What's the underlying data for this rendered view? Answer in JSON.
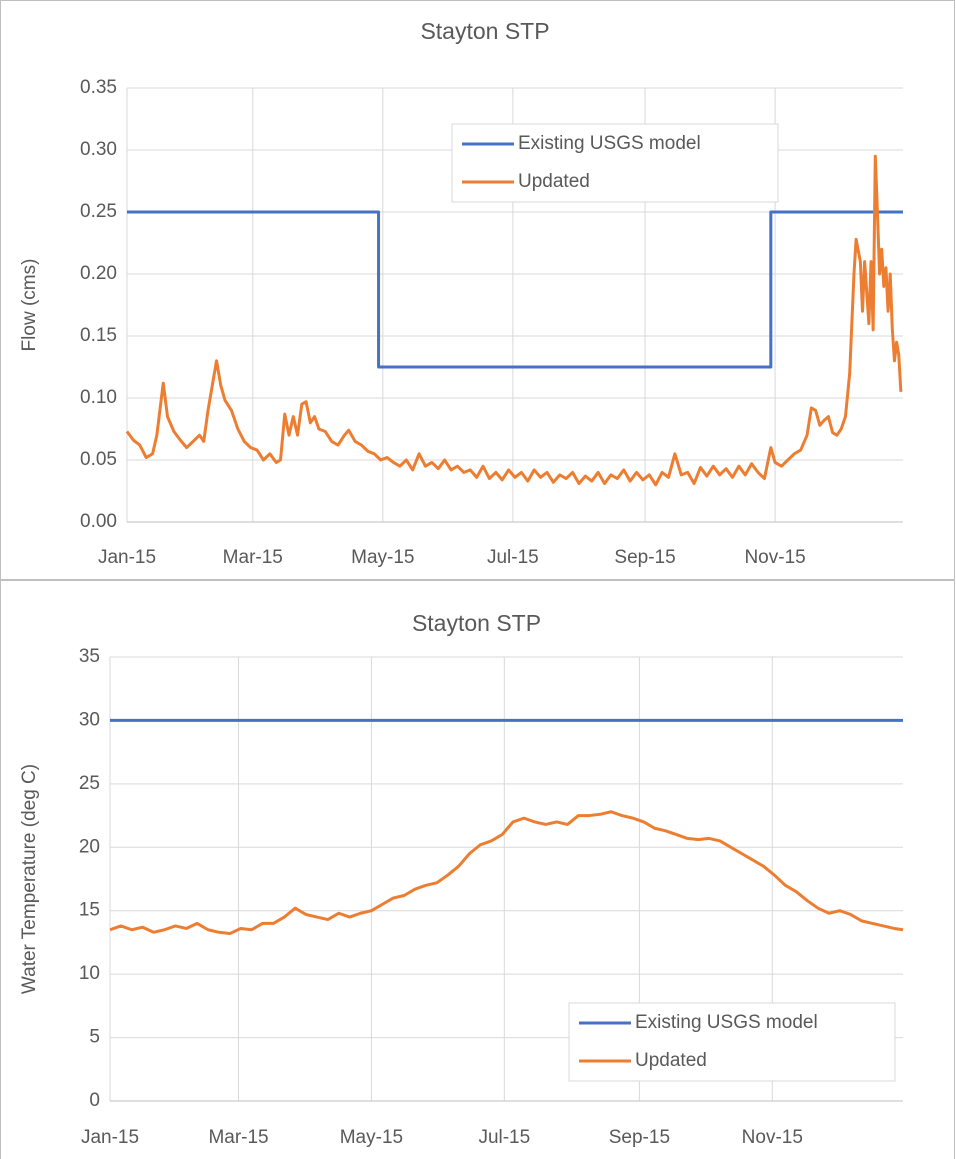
{
  "chart_data": [
    {
      "type": "line",
      "title": "Stayton STP",
      "y_label": "Flow (cms)",
      "xlim": [
        0,
        364
      ],
      "xticks": [
        {
          "value": 0,
          "label": "Jan-15"
        },
        {
          "value": 59,
          "label": "Mar-15"
        },
        {
          "value": 120,
          "label": "May-15"
        },
        {
          "value": 181,
          "label": "Jul-15"
        },
        {
          "value": 243,
          "label": "Sep-15"
        },
        {
          "value": 304,
          "label": "Nov-15"
        }
      ],
      "ylim": [
        0,
        0.35
      ],
      "yticks": [
        {
          "value": 0,
          "label": "0.00"
        },
        {
          "value": 0.05,
          "label": "0.05"
        },
        {
          "value": 0.1,
          "label": "0.10"
        },
        {
          "value": 0.15,
          "label": "0.15"
        },
        {
          "value": 0.2,
          "label": "0.20"
        },
        {
          "value": 0.25,
          "label": "0.25"
        },
        {
          "value": 0.3,
          "label": "0.30"
        },
        {
          "value": 0.35,
          "label": "0.35"
        }
      ],
      "grid": true,
      "legend": "upper-right",
      "series": [
        {
          "name": "Existing USGS model",
          "color": "#4472c4",
          "x": [
            0,
            118,
            118,
            302,
            302,
            364
          ],
          "values": [
            0.25,
            0.25,
            0.125,
            0.125,
            0.25,
            0.25
          ]
        },
        {
          "name": "Updated",
          "color": "#ed7d31",
          "x": [
            0,
            3,
            6,
            9,
            12,
            14,
            17,
            19,
            22,
            25,
            28,
            31,
            34,
            36,
            38,
            40,
            41,
            42,
            44,
            46,
            49,
            52,
            55,
            58,
            61,
            64,
            67,
            70,
            72,
            74,
            76,
            78,
            80,
            82,
            84,
            86,
            88,
            90,
            93,
            96,
            99,
            102,
            104,
            107,
            110,
            113,
            116,
            119,
            122,
            125,
            128,
            131,
            134,
            137,
            140,
            143,
            146,
            149,
            152,
            155,
            158,
            161,
            164,
            167,
            170,
            173,
            176,
            179,
            182,
            185,
            188,
            191,
            194,
            197,
            200,
            203,
            206,
            209,
            212,
            215,
            218,
            221,
            224,
            227,
            230,
            233,
            236,
            239,
            242,
            245,
            248,
            251,
            254,
            257,
            260,
            263,
            266,
            269,
            272,
            275,
            278,
            281,
            284,
            287,
            290,
            293,
            296,
            299,
            302,
            304,
            307,
            310,
            313,
            316,
            319,
            321,
            323,
            325,
            327,
            329,
            331,
            333,
            335,
            337,
            339,
            341,
            342,
            344,
            345,
            346,
            348,
            349,
            350,
            351,
            352,
            353,
            354,
            355,
            356,
            357,
            358,
            359,
            360,
            361,
            362,
            363
          ],
          "values": [
            0.073,
            0.066,
            0.062,
            0.052,
            0.055,
            0.07,
            0.112,
            0.085,
            0.073,
            0.066,
            0.06,
            0.065,
            0.07,
            0.065,
            0.09,
            0.11,
            0.12,
            0.13,
            0.11,
            0.098,
            0.09,
            0.075,
            0.065,
            0.06,
            0.058,
            0.05,
            0.055,
            0.048,
            0.05,
            0.087,
            0.07,
            0.085,
            0.07,
            0.095,
            0.097,
            0.08,
            0.085,
            0.075,
            0.073,
            0.065,
            0.062,
            0.07,
            0.074,
            0.065,
            0.062,
            0.057,
            0.055,
            0.05,
            0.052,
            0.048,
            0.045,
            0.05,
            0.042,
            0.055,
            0.045,
            0.048,
            0.043,
            0.05,
            0.042,
            0.045,
            0.04,
            0.042,
            0.036,
            0.045,
            0.035,
            0.04,
            0.034,
            0.042,
            0.036,
            0.04,
            0.033,
            0.042,
            0.036,
            0.04,
            0.032,
            0.038,
            0.035,
            0.04,
            0.031,
            0.037,
            0.033,
            0.04,
            0.031,
            0.038,
            0.035,
            0.042,
            0.033,
            0.04,
            0.034,
            0.038,
            0.03,
            0.04,
            0.036,
            0.055,
            0.038,
            0.04,
            0.031,
            0.044,
            0.037,
            0.045,
            0.038,
            0.043,
            0.036,
            0.045,
            0.038,
            0.047,
            0.04,
            0.035,
            0.06,
            0.048,
            0.045,
            0.05,
            0.055,
            0.058,
            0.07,
            0.092,
            0.09,
            0.078,
            0.082,
            0.085,
            0.072,
            0.07,
            0.075,
            0.085,
            0.12,
            0.2,
            0.228,
            0.21,
            0.17,
            0.21,
            0.16,
            0.21,
            0.155,
            0.295,
            0.25,
            0.2,
            0.22,
            0.19,
            0.205,
            0.17,
            0.2,
            0.155,
            0.13,
            0.145,
            0.135,
            0.105
          ]
        }
      ]
    },
    {
      "type": "line",
      "title": "Stayton STP",
      "y_label": "Water Temperature (deg C)",
      "xlim": [
        0,
        364
      ],
      "xticks": [
        {
          "value": 0,
          "label": "Jan-15"
        },
        {
          "value": 59,
          "label": "Mar-15"
        },
        {
          "value": 120,
          "label": "May-15"
        },
        {
          "value": 181,
          "label": "Jul-15"
        },
        {
          "value": 243,
          "label": "Sep-15"
        },
        {
          "value": 304,
          "label": "Nov-15"
        }
      ],
      "ylim": [
        0,
        35
      ],
      "yticks": [
        0,
        5,
        10,
        15,
        20,
        25,
        30,
        35
      ],
      "grid": true,
      "legend": "lower-right",
      "series": [
        {
          "name": "Existing USGS model",
          "color": "#4472c4",
          "x": [
            0,
            364
          ],
          "values": [
            30,
            30
          ]
        },
        {
          "name": "Updated",
          "color": "#ed7d31",
          "x": [
            0,
            5,
            10,
            15,
            20,
            25,
            30,
            35,
            40,
            45,
            50,
            55,
            60,
            65,
            70,
            75,
            80,
            85,
            90,
            95,
            100,
            105,
            110,
            115,
            120,
            125,
            130,
            135,
            140,
            145,
            150,
            155,
            160,
            165,
            170,
            175,
            180,
            185,
            190,
            195,
            200,
            205,
            210,
            215,
            220,
            225,
            230,
            235,
            240,
            245,
            250,
            255,
            260,
            265,
            270,
            275,
            280,
            285,
            290,
            295,
            300,
            305,
            310,
            315,
            320,
            325,
            330,
            335,
            340,
            345,
            350,
            355,
            360,
            364
          ],
          "values": [
            13.5,
            13.8,
            13.5,
            13.7,
            13.3,
            13.5,
            13.8,
            13.6,
            14.0,
            13.5,
            13.3,
            13.2,
            13.6,
            13.5,
            14.0,
            14.0,
            14.5,
            15.2,
            14.7,
            14.5,
            14.3,
            14.8,
            14.5,
            14.8,
            15.0,
            15.5,
            16.0,
            16.2,
            16.7,
            17.0,
            17.2,
            17.8,
            18.5,
            19.5,
            20.2,
            20.5,
            21.0,
            22.0,
            22.3,
            22.0,
            21.8,
            22.0,
            21.8,
            22.5,
            22.5,
            22.6,
            22.8,
            22.5,
            22.3,
            22.0,
            21.5,
            21.3,
            21.0,
            20.7,
            20.6,
            20.7,
            20.5,
            20.0,
            19.5,
            19.0,
            18.5,
            17.8,
            17.0,
            16.5,
            15.8,
            15.2,
            14.8,
            15.0,
            14.7,
            14.2,
            14.0,
            13.8,
            13.6,
            13.5
          ]
        }
      ]
    }
  ]
}
